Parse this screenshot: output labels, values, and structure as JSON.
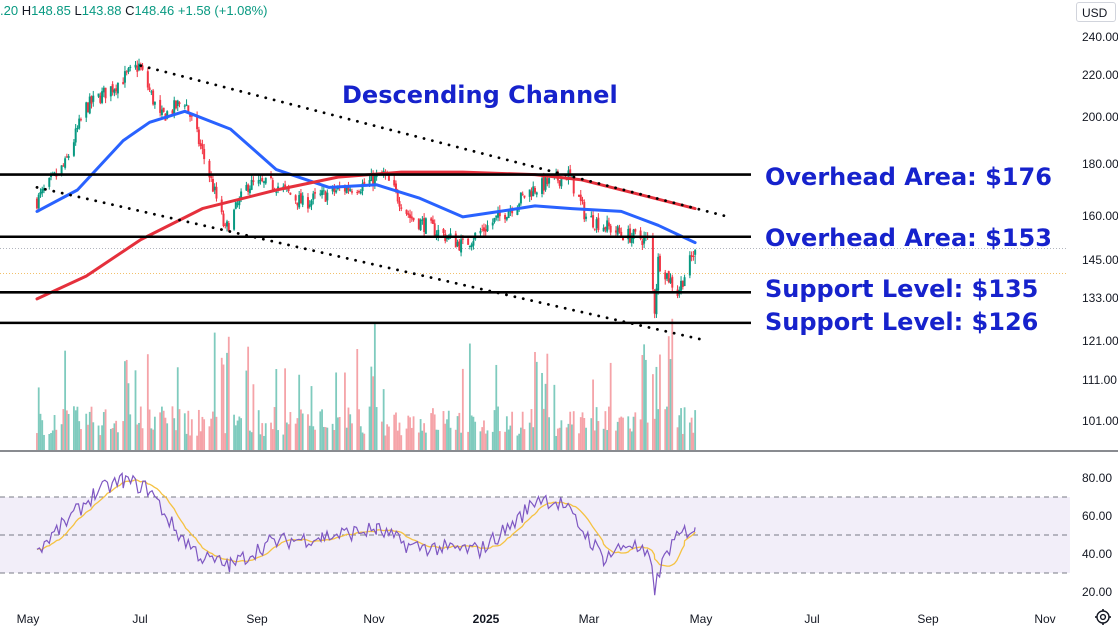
{
  "header": {
    "open_partial": ".20",
    "high_label": "H",
    "high": "148.85",
    "low_label": "L",
    "low": "143.88",
    "close_label": "C",
    "close": "148.46",
    "change": "+1.58 (+1.08%)"
  },
  "currency": "USD",
  "colors": {
    "up": "#089981",
    "down": "#f23645",
    "ma50": "#2962ff",
    "ma200": "#e5303c",
    "annotation": "#1622cc",
    "rsi": "#7e57c2",
    "rsi_ma": "#f5c242",
    "vol_up": "#7fcbbe",
    "vol_down": "#f5a3a8"
  },
  "chart_data": {
    "type": "candlestick",
    "x_ticks": [
      "May",
      "Jul",
      "Sep",
      "Nov",
      "2025",
      "Mar",
      "May",
      "Jul",
      "Sep",
      "Nov"
    ],
    "price_axis": {
      "scale": "log",
      "ticks": [
        "240.00",
        "220.00",
        "200.00",
        "180.00",
        "160.00",
        "145.00",
        "133.00",
        "121.00",
        "111.00",
        "101.00"
      ],
      "range": [
        95,
        250
      ]
    },
    "ohlc_close_path": [
      [
        "2024-04-22",
        166
      ],
      [
        "2024-05-08",
        180
      ],
      [
        "2024-05-20",
        205
      ],
      [
        "2024-06-05",
        215
      ],
      [
        "2024-06-19",
        225
      ],
      [
        "2024-07-01",
        200
      ],
      [
        "2024-07-15",
        208
      ],
      [
        "2024-07-25",
        185
      ],
      [
        "2024-08-07",
        155
      ],
      [
        "2024-08-20",
        172
      ],
      [
        "2024-09-05",
        172
      ],
      [
        "2024-09-20",
        165
      ],
      [
        "2024-10-10",
        170
      ],
      [
        "2024-10-25",
        172
      ],
      [
        "2024-11-05",
        176
      ],
      [
        "2024-11-20",
        160
      ],
      [
        "2024-12-05",
        155
      ],
      [
        "2024-12-20",
        150
      ],
      [
        "2025-01-10",
        160
      ],
      [
        "2025-01-28",
        170
      ],
      [
        "2025-02-18",
        176
      ],
      [
        "2025-02-28",
        160
      ],
      [
        "2025-03-20",
        154
      ],
      [
        "2025-04-04",
        152
      ],
      [
        "2025-04-08",
        130
      ],
      [
        "2025-04-10",
        145
      ],
      [
        "2025-04-21",
        135
      ],
      [
        "2025-05-01",
        148.46
      ]
    ],
    "moving_averages": [
      {
        "id": "ma50",
        "points": [
          [
            "2024-04-22",
            162
          ],
          [
            "2024-05-15",
            170
          ],
          [
            "2024-06-10",
            190
          ],
          [
            "2024-06-25",
            198
          ],
          [
            "2024-07-15",
            203
          ],
          [
            "2024-08-10",
            195
          ],
          [
            "2024-09-05",
            178
          ],
          [
            "2024-10-05",
            171
          ],
          [
            "2024-11-01",
            172
          ],
          [
            "2024-11-25",
            167
          ],
          [
            "2024-12-20",
            160
          ],
          [
            "2025-01-10",
            162
          ],
          [
            "2025-01-30",
            164
          ],
          [
            "2025-02-20",
            163
          ],
          [
            "2025-03-20",
            162
          ],
          [
            "2025-04-10",
            157
          ],
          [
            "2025-05-01",
            151
          ]
        ]
      },
      {
        "id": "ma200",
        "points": [
          [
            "2024-04-22",
            133
          ],
          [
            "2024-05-20",
            140
          ],
          [
            "2024-06-20",
            152
          ],
          [
            "2024-07-25",
            163
          ],
          [
            "2024-09-05",
            170
          ],
          [
            "2024-10-10",
            175
          ],
          [
            "2024-11-15",
            177
          ],
          [
            "2024-12-20",
            177
          ],
          [
            "2025-01-30",
            176
          ],
          [
            "2025-02-25",
            174
          ],
          [
            "2025-04-01",
            168
          ],
          [
            "2025-05-01",
            163
          ]
        ]
      }
    ],
    "annotations": [
      {
        "label": "Descending Channel"
      },
      {
        "label": "Overhead Area: $176",
        "price": 176
      },
      {
        "label": "Overhead Area: $153",
        "price": 153
      },
      {
        "label": "Support Level: $135",
        "price": 135
      },
      {
        "label": "Support Level: $126",
        "price": 126
      }
    ],
    "channel_upper": [
      [
        "2024-06-20",
        225
      ],
      [
        "2025-05-20",
        160
      ]
    ],
    "channel_lower": [
      [
        "2024-04-22",
        171
      ],
      [
        "2025-05-08",
        121
      ]
    ],
    "rsi": {
      "axis_ticks": [
        "80.00",
        "60.00",
        "40.00",
        "20.00"
      ],
      "bands": [
        30,
        70
      ],
      "mid": 50,
      "points": [
        [
          "2024-04-22",
          42
        ],
        [
          "2024-05-10",
          58
        ],
        [
          "2024-05-25",
          72
        ],
        [
          "2024-06-10",
          79
        ],
        [
          "2024-06-25",
          74
        ],
        [
          "2024-07-10",
          52
        ],
        [
          "2024-07-25",
          38
        ],
        [
          "2024-08-10",
          34
        ],
        [
          "2024-09-01",
          46
        ],
        [
          "2024-10-01",
          49
        ],
        [
          "2024-11-01",
          53
        ],
        [
          "2024-11-20",
          44
        ],
        [
          "2024-12-10",
          43
        ],
        [
          "2024-12-30",
          42
        ],
        [
          "2025-01-20",
          58
        ],
        [
          "2025-02-01",
          70
        ],
        [
          "2025-02-15",
          66
        ],
        [
          "2025-03-01",
          49
        ],
        [
          "2025-03-10",
          38
        ],
        [
          "2025-03-25",
          46
        ],
        [
          "2025-04-05",
          37
        ],
        [
          "2025-04-08",
          22
        ],
        [
          "2025-04-15",
          42
        ],
        [
          "2025-04-25",
          52
        ],
        [
          "2025-05-01",
          54
        ]
      ]
    }
  }
}
